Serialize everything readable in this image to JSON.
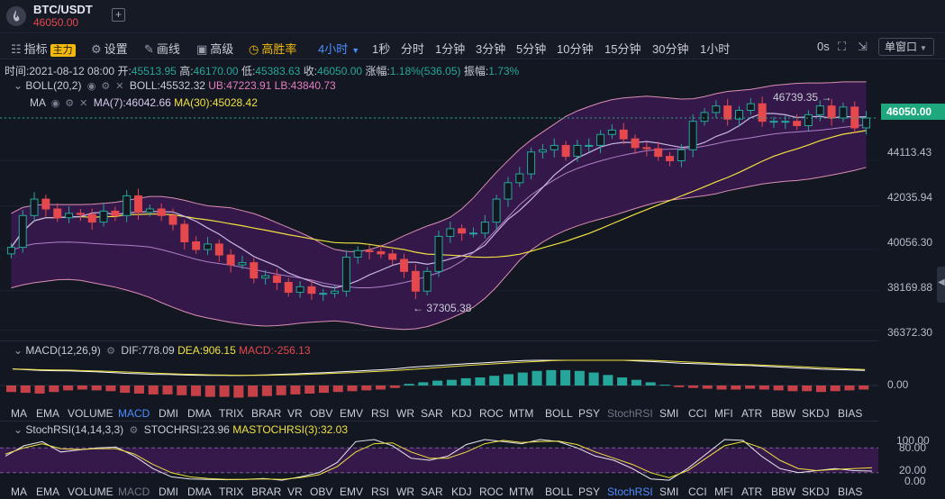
{
  "header": {
    "pair": "BTC/USDT",
    "price": "46050.00",
    "add_icon": "+"
  },
  "toolbar": {
    "indicators_label": "指标",
    "main_tag": "主力",
    "settings_label": "设置",
    "draw_label": "画线",
    "advanced_label": "高级",
    "winrate_label": "高胜率",
    "interval_label": "4小时",
    "intervals": [
      "1秒",
      "分时",
      "1分钟",
      "3分钟",
      "5分钟",
      "10分钟",
      "15分钟",
      "30分钟",
      "1小时"
    ],
    "zero_label": "0s",
    "window_label": "单窗口"
  },
  "info": {
    "time_label": "时间:",
    "time": "2021-08-12 08:00",
    "open_label": "开:",
    "open": "45513.95",
    "high_label": "高:",
    "high": "46170.00",
    "low_label": "低:",
    "low": "45383.63",
    "close_label": "收:",
    "close": "46050.00",
    "change_label": "涨幅:",
    "change": "1.18%(536.05)",
    "amp_label": "振幅:",
    "amp": "1.73%"
  },
  "legend": {
    "boll_name": "BOLL(20,2)",
    "boll_mid": "BOLL:45532.32",
    "boll_ub": "UB:47223.91",
    "boll_lb": "LB:43840.73",
    "ma_name": "MA",
    "ma7": "MA(7):46042.66",
    "ma30": "MA(30):45028.42",
    "macd_name": "MACD(12,26,9)",
    "macd_dif": "DIF:778.09",
    "macd_dea": "DEA:906.15",
    "macd_val": "MACD:-256.13",
    "stoch_name": "StochRSI(14,14,3,3)",
    "stoch_k": "STOCHRSI:23.96",
    "stoch_d": "MASTOCHRSI(3):32.03"
  },
  "axis": {
    "price_ticks": [
      "44113.43",
      "42035.94",
      "40056.30",
      "38169.88",
      "36372.30"
    ],
    "current_price": "46050.00",
    "macd_tick": "0.00",
    "stoch_ticks": [
      "100.00",
      "80.00",
      "20.00",
      "0.00"
    ]
  },
  "annotations": {
    "high_mark": "46739.35",
    "low_mark": "37305.38"
  },
  "indicator_tabs": [
    "MA",
    "EMA",
    "VOLUME",
    "MACD",
    "DMI",
    "DMA",
    "TRIX",
    "BRAR",
    "VR",
    "OBV",
    "EMV",
    "RSI",
    "WR",
    "SAR",
    "KDJ",
    "ROC",
    "MTM",
    "BOLL",
    "PSY",
    "StochRSI",
    "SMI",
    "CCI",
    "MFI",
    "ATR",
    "BBW",
    "SKDJ",
    "BIAS"
  ],
  "colors": {
    "up": "#26a69a",
    "down": "#e5484d",
    "ma7": "#c8b8e6",
    "ma30": "#f0e040",
    "boll": "#d98fb2",
    "band": "#3b1950"
  },
  "chart_data": [
    {
      "type": "candlestick",
      "title": "BTC/USDT 4小时",
      "ylim": [
        35900,
        47900
      ],
      "y_ticks": [
        36372.3,
        38169.88,
        40056.3,
        42035.94,
        44113.43,
        46050.0
      ],
      "closes": [
        40150,
        41600,
        42350,
        41900,
        41500,
        41700,
        41650,
        41300,
        41800,
        41600,
        42500,
        41750,
        41900,
        41600,
        41200,
        40400,
        40050,
        40300,
        39800,
        39350,
        39450,
        38750,
        38850,
        38550,
        38100,
        38350,
        38050,
        38050,
        38150,
        39700,
        40000,
        39950,
        39850,
        39600,
        39050,
        38150,
        39050,
        40650,
        41000,
        40800,
        40800,
        41300,
        42350,
        43100,
        43500,
        44500,
        44600,
        44800,
        44300,
        44800,
        44800,
        45300,
        45500,
        45100,
        44700,
        44650,
        44300,
        44100,
        44600,
        45900,
        46300,
        46600,
        46000,
        46400,
        46700,
        45900,
        45900,
        45900,
        45700,
        46200,
        46600,
        46050,
        46550,
        45600,
        46050
      ],
      "boll_ub": [
        41700,
        42000,
        42100,
        42100,
        42100,
        42100,
        42100,
        42150,
        42200,
        42300,
        42400,
        42500,
        42450,
        42350,
        42200,
        42050,
        42000,
        41950,
        41800,
        41650,
        41400,
        41150,
        40900,
        40650,
        40300,
        40050,
        39950,
        39950,
        40100,
        40300,
        40600,
        40850,
        41100,
        41300,
        41550,
        42000,
        42600,
        43300,
        43900,
        44500,
        45000,
        45400,
        45800,
        46200,
        46450,
        46650,
        46850,
        46950,
        47000,
        47050,
        47000,
        46950,
        46900,
        46950,
        47100,
        47250,
        47300,
        47350,
        47450,
        47550,
        47600,
        47650,
        47650,
        47650,
        47700,
        47700,
        47700
      ],
      "boll_lb": [
        38300,
        38500,
        38600,
        38700,
        38650,
        38500,
        38350,
        38150,
        37900,
        37550,
        37250,
        37000,
        36850,
        36700,
        36600,
        36550,
        36600,
        36700,
        36750,
        36800,
        36700,
        36550,
        36450,
        36400,
        36450,
        36700,
        37000,
        37400,
        38000,
        38900,
        39800,
        40350,
        40800,
        41100,
        41350,
        41550,
        41800,
        42050,
        42250,
        42350,
        42450,
        42550,
        42750,
        42900,
        43050,
        43150,
        43200,
        43300,
        43450,
        43600,
        43800
      ],
      "ma7_last": 46042.66,
      "ma30_last": 45028.42,
      "high_mark": 46739.35,
      "low_mark": 37305.38
    },
    {
      "type": "bar",
      "title": "MACD(12,26,9)",
      "values": [
        -0.4,
        -0.45,
        -0.5,
        -0.4,
        -0.3,
        -0.25,
        -0.3,
        -0.35,
        -0.45,
        -0.5,
        -0.55,
        -0.55,
        -0.6,
        -0.65,
        -0.7,
        -0.7,
        -0.75,
        -0.7,
        -0.65,
        -0.6,
        -0.55,
        -0.5,
        -0.45,
        -0.4,
        -0.35,
        -0.3,
        -0.25,
        -0.15,
        0.1,
        0.2,
        0.3,
        0.35,
        0.45,
        0.5,
        0.6,
        0.7,
        0.8,
        0.9,
        0.95,
        0.95,
        0.9,
        0.8,
        0.65,
        0.5,
        0.35,
        0.2,
        0.05,
        -0.1,
        -0.15,
        -0.2,
        -0.25,
        -0.25,
        -0.2,
        -0.25,
        -0.3,
        -0.35,
        -0.35,
        -0.4,
        -0.35,
        -0.3,
        -0.25
      ],
      "y_tick": 0
    },
    {
      "type": "line",
      "title": "StochRSI(14,14,3,3)",
      "ylim": [
        0,
        100
      ],
      "y_ticks": [
        100,
        80,
        20,
        0
      ],
      "stochrsi": [
        60,
        85,
        95,
        70,
        75,
        80,
        82,
        60,
        30,
        10,
        5,
        4,
        3,
        4,
        6,
        2,
        10,
        20,
        45,
        95,
        100,
        85,
        55,
        50,
        60,
        88,
        100,
        95,
        90,
        100,
        95,
        80,
        60,
        50,
        30,
        5,
        2,
        30,
        65,
        100,
        98,
        60,
        30,
        20,
        25,
        30,
        25,
        24
      ],
      "mastochrsi": [
        65,
        80,
        90,
        78,
        76,
        78,
        78,
        65,
        40,
        20,
        10,
        6,
        4,
        4,
        5,
        4,
        8,
        15,
        35,
        70,
        90,
        92,
        70,
        55,
        55,
        70,
        90,
        98,
        93,
        95,
        96,
        88,
        70,
        55,
        40,
        20,
        8,
        25,
        55,
        85,
        95,
        80,
        50,
        30,
        25,
        28,
        30,
        32
      ]
    }
  ]
}
